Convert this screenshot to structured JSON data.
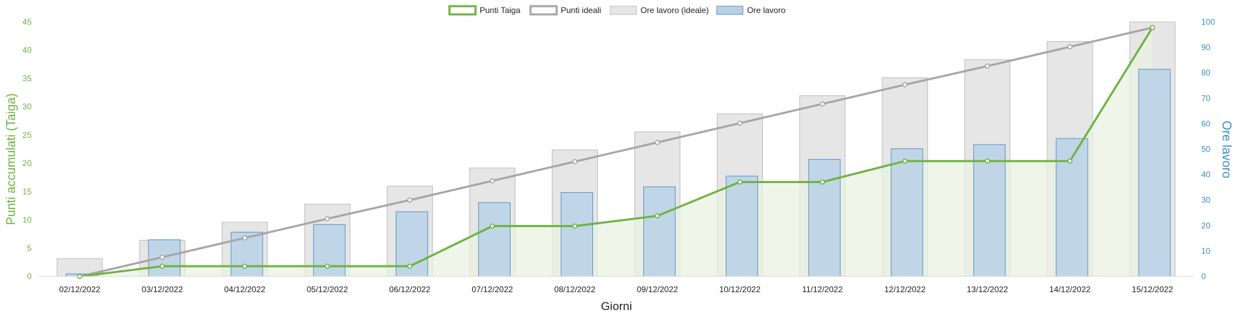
{
  "chart_data": {
    "type": "bar",
    "categories": [
      "02/12/2022",
      "03/12/2022",
      "04/12/2022",
      "05/12/2022",
      "06/12/2022",
      "07/12/2022",
      "08/12/2022",
      "09/12/2022",
      "10/12/2022",
      "11/12/2022",
      "12/12/2022",
      "13/12/2022",
      "14/12/2022",
      "15/12/2022"
    ],
    "xlabel": "Giorni",
    "ylabel_left": "Punti accumulati (Taiga)",
    "ylabel_right": "Ore lavoro",
    "ylim_left": [
      0,
      45
    ],
    "ylim_right": [
      0,
      100
    ],
    "yticks_left": [
      0,
      5,
      10,
      15,
      20,
      25,
      30,
      35,
      40,
      45
    ],
    "yticks_right": [
      0,
      10,
      20,
      30,
      40,
      50,
      60,
      70,
      80,
      90,
      100
    ],
    "grid": false,
    "legend_position": "top-center",
    "series": [
      {
        "name": "Punti Taiga",
        "kind": "line-area",
        "axis": "left",
        "color": "#6db33f",
        "values": [
          0,
          1.8,
          1.8,
          1.8,
          1.8,
          8.9,
          8.9,
          10.7,
          16.7,
          16.7,
          20.4,
          20.4,
          20.4,
          44
        ]
      },
      {
        "name": "Punti ideali",
        "kind": "line",
        "axis": "left",
        "color": "#a6a6a6",
        "values": [
          0,
          3.4,
          6.8,
          10.2,
          13.5,
          16.9,
          20.3,
          23.7,
          27.1,
          30.5,
          33.9,
          37.2,
          40.6,
          44
        ]
      },
      {
        "name": "Ore lavoro (ideale)",
        "kind": "bar",
        "axis": "right",
        "color": "#e6e6e6",
        "values": [
          7,
          14.2,
          21.3,
          28.4,
          35.5,
          42.6,
          49.7,
          56.8,
          63.9,
          71,
          78.1,
          85.2,
          92.3,
          100
        ]
      },
      {
        "name": "Ore lavoro",
        "kind": "bar",
        "axis": "right",
        "color": "#b8d1e6",
        "values": [
          1,
          14.4,
          17.4,
          20.4,
          25.4,
          29,
          33,
          35.2,
          39.4,
          46,
          50.2,
          51.8,
          54.2,
          81.4
        ]
      }
    ],
    "colors": {
      "left_axis": "#6db33f",
      "right_axis": "#3a8fc4",
      "taiga_line": "#6db33f",
      "taiga_fill": "#e9f3e1",
      "ideal_line": "#a6a6a6",
      "ideal_bar_fill": "#e6e6e6",
      "ideal_bar_stroke": "#bdbdbd",
      "hours_bar_fill": "#b8d1e6",
      "hours_bar_stroke": "#5f95bf"
    }
  }
}
